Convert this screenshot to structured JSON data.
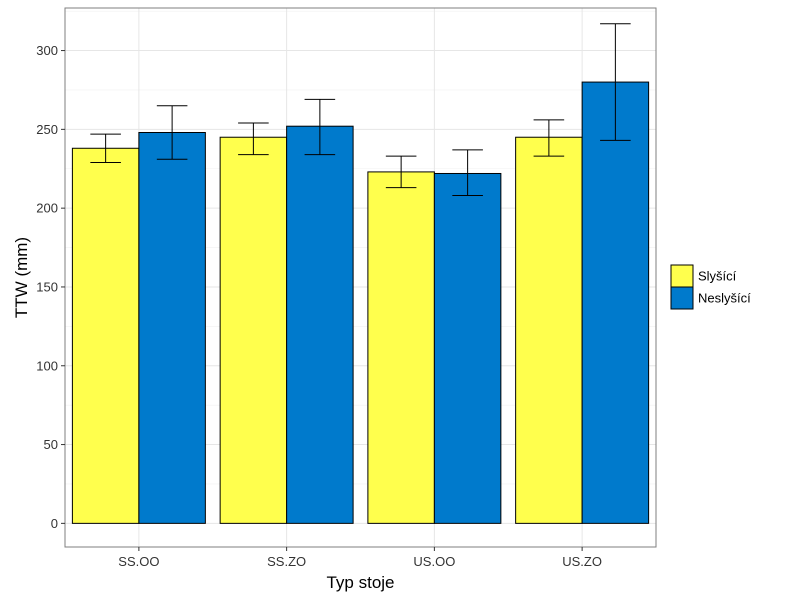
{
  "chart_data": {
    "type": "bar",
    "xlabel": "Typ stoje",
    "ylabel": "TTW (mm)",
    "categories": [
      "SS.OO",
      "SS.ZO",
      "US.OO",
      "US.ZO"
    ],
    "ylim": [
      -15,
      327
    ],
    "yticks": [
      0,
      50,
      100,
      150,
      200,
      250,
      300
    ],
    "grid": true,
    "legend_position": "right",
    "series": [
      {
        "name": "Slyšící",
        "color": "#FFFF4D",
        "values": [
          238,
          245,
          223,
          245
        ],
        "err_low": [
          229,
          234,
          213,
          233
        ],
        "err_high": [
          247,
          254,
          233,
          256
        ]
      },
      {
        "name": "Neslyšící",
        "color": "#007ACC",
        "values": [
          248,
          252,
          222,
          280
        ],
        "err_low": [
          231,
          234,
          208,
          243
        ],
        "err_high": [
          265,
          269,
          237,
          317
        ]
      }
    ]
  }
}
